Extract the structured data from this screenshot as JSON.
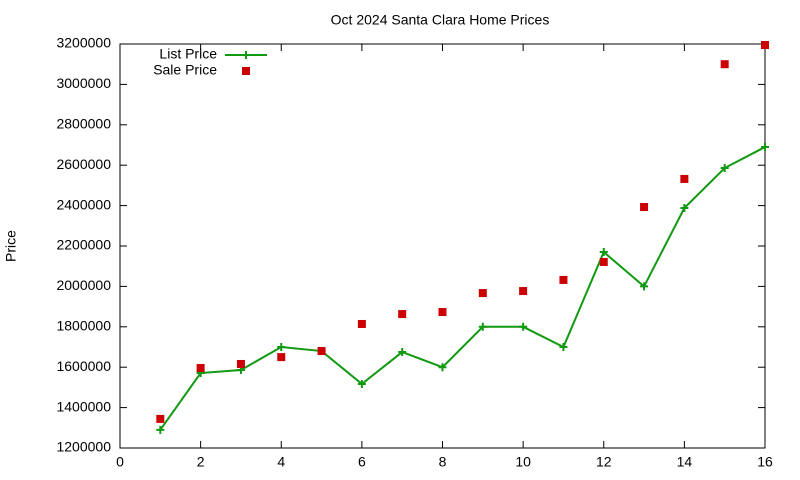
{
  "chart_data": {
    "type": "line",
    "title": "Oct 2024 Santa Clara Home Prices",
    "y_label": "Price",
    "x": [
      1,
      2,
      3,
      4,
      5,
      6,
      7,
      8,
      9,
      10,
      11,
      12,
      13,
      14,
      15,
      16
    ],
    "series": [
      {
        "name": "List Price",
        "color": "#119911",
        "style": "linespoints",
        "values": [
          1290000,
          1571000,
          1586000,
          1700000,
          1680000,
          1517000,
          1675000,
          1600000,
          1800000,
          1800000,
          1700000,
          2170000,
          2000000,
          2388000,
          2586000,
          2690000
        ]
      },
      {
        "name": "Sale Price",
        "color": "#cc0000",
        "style": "points",
        "values": [
          1344000,
          1596000,
          1616000,
          1650000,
          1680000,
          1814000,
          1863000,
          1873000,
          1967000,
          1977000,
          2032000,
          2121000,
          2393000,
          2532000,
          3100000,
          3195000
        ]
      }
    ],
    "xlim": [
      0,
      16
    ],
    "xticks": [
      0,
      2,
      4,
      6,
      8,
      10,
      12,
      14,
      16
    ],
    "ylim": [
      1200000,
      3200000
    ],
    "yticks": [
      1200000,
      1400000,
      1600000,
      1800000,
      2000000,
      2200000,
      2400000,
      2600000,
      2800000,
      3000000,
      3200000
    ],
    "grid": false,
    "legend": "top-left"
  }
}
